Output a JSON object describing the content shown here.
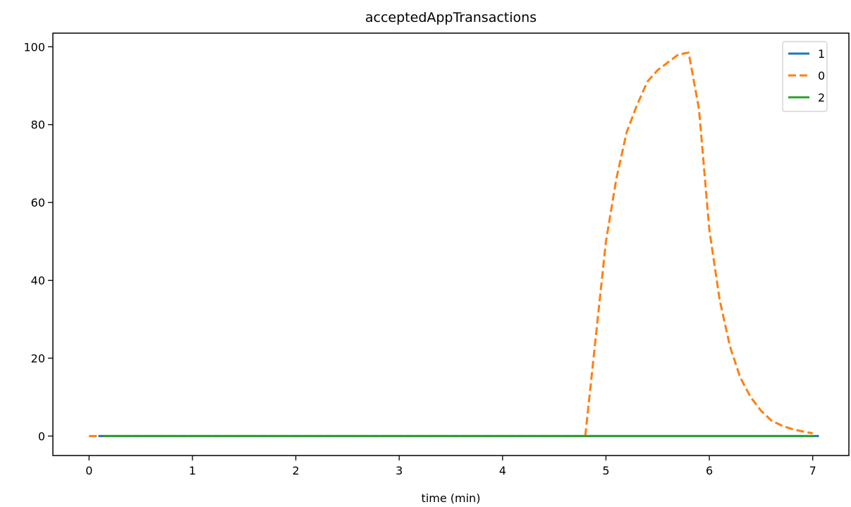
{
  "chart_data": {
    "type": "line",
    "title": "acceptedAppTransactions",
    "xlabel": "time (min)",
    "ylabel": "",
    "xlim": [
      -0.35,
      7.35
    ],
    "ylim": [
      -5,
      103.5
    ],
    "xticks": [
      0,
      1,
      2,
      3,
      4,
      5,
      6,
      7
    ],
    "yticks": [
      0,
      20,
      40,
      60,
      80,
      100
    ],
    "grid": false,
    "legend_position": "top-right",
    "series": [
      {
        "name": "1",
        "color": "#1f77b4",
        "dash": "solid",
        "x": [
          0.1,
          1,
          2,
          3,
          4,
          5,
          6,
          7.05
        ],
        "y": [
          0,
          0,
          0,
          0,
          0,
          0,
          0,
          0
        ]
      },
      {
        "name": "0",
        "color": "#ff7f0e",
        "dash": "dashed",
        "x": [
          0.0,
          0.5,
          1.0,
          1.5,
          2.0,
          2.5,
          3.0,
          3.5,
          4.0,
          4.5,
          4.8,
          4.9,
          5.0,
          5.1,
          5.2,
          5.3,
          5.4,
          5.5,
          5.6,
          5.7,
          5.8,
          5.9,
          6.0,
          6.1,
          6.2,
          6.3,
          6.4,
          6.5,
          6.6,
          6.7,
          6.8,
          6.9,
          7.0
        ],
        "y": [
          0,
          0,
          0,
          0,
          0,
          0,
          0,
          0,
          0,
          0,
          0,
          25,
          50,
          66,
          78,
          85,
          91,
          94,
          96,
          98,
          98.5,
          84,
          53,
          35,
          23,
          15,
          10,
          6.5,
          4,
          2.7,
          1.8,
          1.2,
          0.7
        ]
      },
      {
        "name": "2",
        "color": "#2ca02c",
        "dash": "solid",
        "x": [
          0.15,
          1,
          2,
          3,
          4,
          5,
          6,
          7.0
        ],
        "y": [
          0,
          0,
          0,
          0,
          0,
          0,
          0,
          0
        ]
      }
    ],
    "legend_order": [
      "1",
      "0",
      "2"
    ]
  }
}
